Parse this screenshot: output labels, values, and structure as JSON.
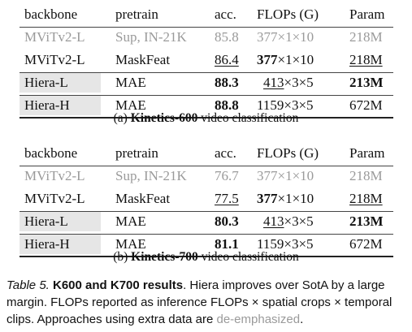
{
  "table_a": {
    "headers": [
      "backbone",
      "pretrain",
      "acc.",
      "FLOPs (G)",
      "Param"
    ],
    "rows": [
      {
        "backbone": "MViTv2-L",
        "pretrain": "Sup, IN-21K",
        "acc": "85.8",
        "flops": "377×1×10",
        "param": "218M"
      },
      {
        "backbone": "MViTv2-L",
        "pretrain": "MaskFeat",
        "acc": "86.4",
        "flops_bold": "377",
        "flops_rest": "×1×10",
        "param": "218M"
      },
      {
        "backbone": "Hiera-L",
        "pretrain": "MAE",
        "acc": "88.3",
        "flops_u": "413",
        "flops_rest": "×3×5",
        "param": "213M"
      },
      {
        "backbone": "Hiera-H",
        "pretrain": "MAE",
        "acc": "88.8",
        "flops": "1159×3×5",
        "param": "672M"
      }
    ],
    "caption_prefix": "(a) ",
    "caption_bold": "Kinetics-600",
    "caption_rest": " video classification"
  },
  "table_b": {
    "headers": [
      "backbone",
      "pretrain",
      "acc.",
      "FLOPs (G)",
      "Param"
    ],
    "rows": [
      {
        "backbone": "MViTv2-L",
        "pretrain": "Sup, IN-21K",
        "acc": "76.7",
        "flops": "377×1×10",
        "param": "218M"
      },
      {
        "backbone": "MViTv2-L",
        "pretrain": "MaskFeat",
        "acc": "77.5",
        "flops_bold": "377",
        "flops_rest": "×1×10",
        "param": "218M"
      },
      {
        "backbone": "Hiera-L",
        "pretrain": "MAE",
        "acc": "80.3",
        "flops_u": "413",
        "flops_rest": "×3×5",
        "param": "213M"
      },
      {
        "backbone": "Hiera-H",
        "pretrain": "MAE",
        "acc": "81.1",
        "flops": "1159×3×5",
        "param": "672M"
      }
    ],
    "caption_prefix": "(b) ",
    "caption_bold": "Kinetics-700",
    "caption_rest": " video classification"
  },
  "caption": {
    "label": "Table 5.",
    "bold": " K600 and K700 results",
    "text": ". Hiera improves over SotA by a large margin. FLOPs reported as inference FLOPs × spatial crops × temporal clips. Approaches using extra data are ",
    "deemph": "de-emphasized",
    "end": "."
  },
  "colors": {
    "deemphasized": "#9a9a9a",
    "highlight": "#e6e6e6"
  }
}
